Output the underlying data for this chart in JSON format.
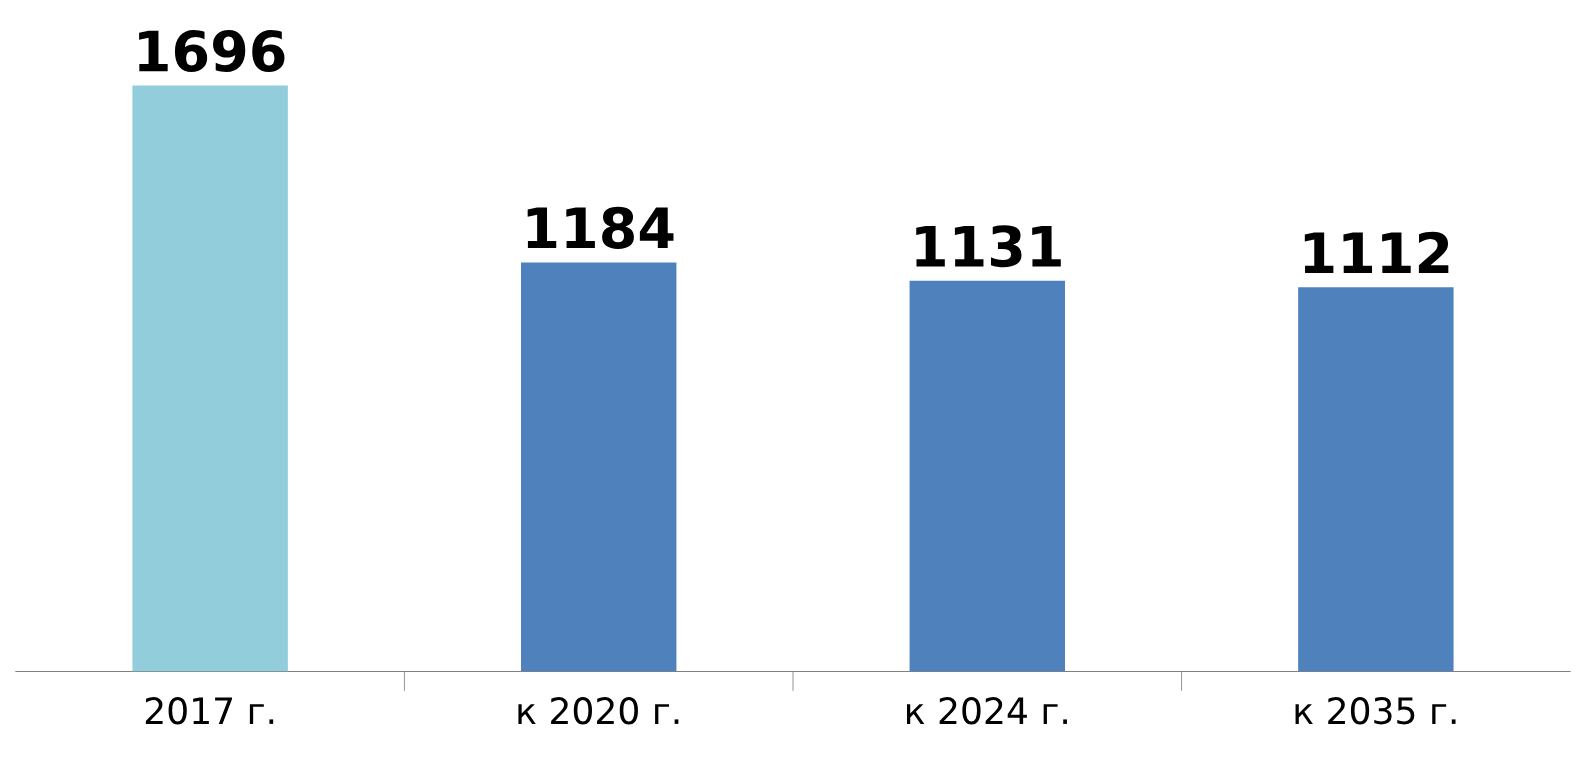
{
  "chart_data": {
    "type": "bar",
    "categories": [
      "2017 г.",
      "к 2020 г.",
      "к 2024 г.",
      "к 2035 г."
    ],
    "values": [
      1696,
      1184,
      1131,
      1112
    ],
    "colors": [
      "#92cddc",
      "#4f81bd",
      "#4f81bd",
      "#4f81bd"
    ],
    "data_labels": true,
    "grid": false,
    "legend": false,
    "tick_labels": "x"
  }
}
